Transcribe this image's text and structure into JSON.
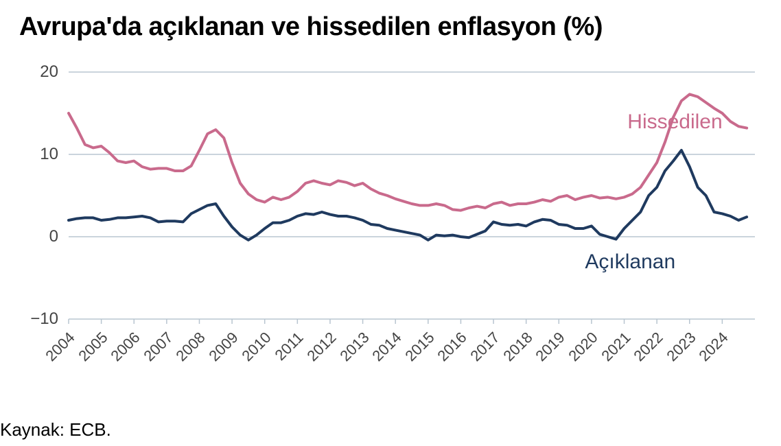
{
  "title": "Avrupa'da açıklanan ve hissedilen enflasyon (%)",
  "source": "Kaynak: ECB.",
  "chart": {
    "type": "line",
    "background_color": "#ffffff",
    "grid_color": "#b8c5d0",
    "axis_color": "#b8c5d0",
    "ylim": [
      -10,
      20
    ],
    "yticks": [
      -10,
      0,
      10,
      20
    ],
    "xlim": [
      2004,
      2025
    ],
    "xticks": [
      2004,
      2005,
      2006,
      2007,
      2008,
      2009,
      2010,
      2011,
      2012,
      2013,
      2014,
      2015,
      2016,
      2017,
      2018,
      2019,
      2020,
      2021,
      2022,
      2023,
      2024
    ],
    "x_label_rotation_deg": -45,
    "label_fontsize": 24,
    "title_fontsize": 38,
    "line_width": 4,
    "series": [
      {
        "name": "Hissedilen",
        "label": "Hissedilen",
        "color": "#c96a8c",
        "label_pos_year": 2021.1,
        "label_pos_y": 13.8,
        "data": [
          [
            2004.0,
            15.0
          ],
          [
            2004.25,
            13.2
          ],
          [
            2004.5,
            11.2
          ],
          [
            2004.75,
            10.8
          ],
          [
            2005.0,
            11.0
          ],
          [
            2005.25,
            10.2
          ],
          [
            2005.5,
            9.2
          ],
          [
            2005.75,
            9.0
          ],
          [
            2006.0,
            9.2
          ],
          [
            2006.25,
            8.5
          ],
          [
            2006.5,
            8.2
          ],
          [
            2006.75,
            8.3
          ],
          [
            2007.0,
            8.3
          ],
          [
            2007.25,
            8.0
          ],
          [
            2007.5,
            8.0
          ],
          [
            2007.75,
            8.6
          ],
          [
            2008.0,
            10.5
          ],
          [
            2008.25,
            12.5
          ],
          [
            2008.5,
            13.0
          ],
          [
            2008.75,
            12.0
          ],
          [
            2009.0,
            9.0
          ],
          [
            2009.25,
            6.5
          ],
          [
            2009.5,
            5.2
          ],
          [
            2009.75,
            4.5
          ],
          [
            2010.0,
            4.2
          ],
          [
            2010.25,
            4.8
          ],
          [
            2010.5,
            4.5
          ],
          [
            2010.75,
            4.8
          ],
          [
            2011.0,
            5.5
          ],
          [
            2011.25,
            6.5
          ],
          [
            2011.5,
            6.8
          ],
          [
            2011.75,
            6.5
          ],
          [
            2012.0,
            6.3
          ],
          [
            2012.25,
            6.8
          ],
          [
            2012.5,
            6.6
          ],
          [
            2012.75,
            6.2
          ],
          [
            2013.0,
            6.5
          ],
          [
            2013.25,
            5.8
          ],
          [
            2013.5,
            5.3
          ],
          [
            2013.75,
            5.0
          ],
          [
            2014.0,
            4.6
          ],
          [
            2014.25,
            4.3
          ],
          [
            2014.5,
            4.0
          ],
          [
            2014.75,
            3.8
          ],
          [
            2015.0,
            3.8
          ],
          [
            2015.25,
            4.0
          ],
          [
            2015.5,
            3.8
          ],
          [
            2015.75,
            3.3
          ],
          [
            2016.0,
            3.2
          ],
          [
            2016.25,
            3.5
          ],
          [
            2016.5,
            3.7
          ],
          [
            2016.75,
            3.5
          ],
          [
            2017.0,
            4.0
          ],
          [
            2017.25,
            4.2
          ],
          [
            2017.5,
            3.8
          ],
          [
            2017.75,
            4.0
          ],
          [
            2018.0,
            4.0
          ],
          [
            2018.25,
            4.2
          ],
          [
            2018.5,
            4.5
          ],
          [
            2018.75,
            4.3
          ],
          [
            2019.0,
            4.8
          ],
          [
            2019.25,
            5.0
          ],
          [
            2019.5,
            4.5
          ],
          [
            2019.75,
            4.8
          ],
          [
            2020.0,
            5.0
          ],
          [
            2020.25,
            4.7
          ],
          [
            2020.5,
            4.8
          ],
          [
            2020.75,
            4.6
          ],
          [
            2021.0,
            4.8
          ],
          [
            2021.25,
            5.2
          ],
          [
            2021.5,
            6.0
          ],
          [
            2021.75,
            7.5
          ],
          [
            2022.0,
            9.0
          ],
          [
            2022.25,
            11.5
          ],
          [
            2022.5,
            14.5
          ],
          [
            2022.75,
            16.5
          ],
          [
            2023.0,
            17.3
          ],
          [
            2023.25,
            17.0
          ],
          [
            2023.5,
            16.3
          ],
          [
            2023.75,
            15.6
          ],
          [
            2024.0,
            15.0
          ],
          [
            2024.25,
            14.0
          ],
          [
            2024.5,
            13.4
          ],
          [
            2024.75,
            13.2
          ]
        ]
      },
      {
        "name": "Açıklanan",
        "label": "Açıklanan",
        "color": "#1f3a5f",
        "label_pos_year": 2019.8,
        "label_pos_y": -3.2,
        "data": [
          [
            2004.0,
            2.0
          ],
          [
            2004.25,
            2.2
          ],
          [
            2004.5,
            2.3
          ],
          [
            2004.75,
            2.3
          ],
          [
            2005.0,
            2.0
          ],
          [
            2005.25,
            2.1
          ],
          [
            2005.5,
            2.3
          ],
          [
            2005.75,
            2.3
          ],
          [
            2006.0,
            2.4
          ],
          [
            2006.25,
            2.5
          ],
          [
            2006.5,
            2.3
          ],
          [
            2006.75,
            1.8
          ],
          [
            2007.0,
            1.9
          ],
          [
            2007.25,
            1.9
          ],
          [
            2007.5,
            1.8
          ],
          [
            2007.75,
            2.8
          ],
          [
            2008.0,
            3.3
          ],
          [
            2008.25,
            3.8
          ],
          [
            2008.5,
            4.0
          ],
          [
            2008.75,
            2.5
          ],
          [
            2009.0,
            1.2
          ],
          [
            2009.25,
            0.2
          ],
          [
            2009.5,
            -0.4
          ],
          [
            2009.75,
            0.2
          ],
          [
            2010.0,
            1.0
          ],
          [
            2010.25,
            1.7
          ],
          [
            2010.5,
            1.7
          ],
          [
            2010.75,
            2.0
          ],
          [
            2011.0,
            2.5
          ],
          [
            2011.25,
            2.8
          ],
          [
            2011.5,
            2.7
          ],
          [
            2011.75,
            3.0
          ],
          [
            2012.0,
            2.7
          ],
          [
            2012.25,
            2.5
          ],
          [
            2012.5,
            2.5
          ],
          [
            2012.75,
            2.3
          ],
          [
            2013.0,
            2.0
          ],
          [
            2013.25,
            1.5
          ],
          [
            2013.5,
            1.4
          ],
          [
            2013.75,
            1.0
          ],
          [
            2014.0,
            0.8
          ],
          [
            2014.25,
            0.6
          ],
          [
            2014.5,
            0.4
          ],
          [
            2014.75,
            0.2
          ],
          [
            2015.0,
            -0.4
          ],
          [
            2015.25,
            0.2
          ],
          [
            2015.5,
            0.1
          ],
          [
            2015.75,
            0.2
          ],
          [
            2016.0,
            0.0
          ],
          [
            2016.25,
            -0.1
          ],
          [
            2016.5,
            0.3
          ],
          [
            2016.75,
            0.7
          ],
          [
            2017.0,
            1.8
          ],
          [
            2017.25,
            1.5
          ],
          [
            2017.5,
            1.4
          ],
          [
            2017.75,
            1.5
          ],
          [
            2018.0,
            1.3
          ],
          [
            2018.25,
            1.8
          ],
          [
            2018.5,
            2.1
          ],
          [
            2018.75,
            2.0
          ],
          [
            2019.0,
            1.5
          ],
          [
            2019.25,
            1.4
          ],
          [
            2019.5,
            1.0
          ],
          [
            2019.75,
            1.0
          ],
          [
            2020.0,
            1.3
          ],
          [
            2020.25,
            0.3
          ],
          [
            2020.5,
            0.0
          ],
          [
            2020.75,
            -0.3
          ],
          [
            2021.0,
            1.0
          ],
          [
            2021.25,
            2.0
          ],
          [
            2021.5,
            3.0
          ],
          [
            2021.75,
            5.0
          ],
          [
            2022.0,
            6.0
          ],
          [
            2022.25,
            8.0
          ],
          [
            2022.5,
            9.2
          ],
          [
            2022.75,
            10.5
          ],
          [
            2023.0,
            8.5
          ],
          [
            2023.25,
            6.0
          ],
          [
            2023.5,
            5.0
          ],
          [
            2023.75,
            3.0
          ],
          [
            2024.0,
            2.8
          ],
          [
            2024.25,
            2.5
          ],
          [
            2024.5,
            2.0
          ],
          [
            2024.75,
            2.4
          ]
        ]
      }
    ]
  }
}
